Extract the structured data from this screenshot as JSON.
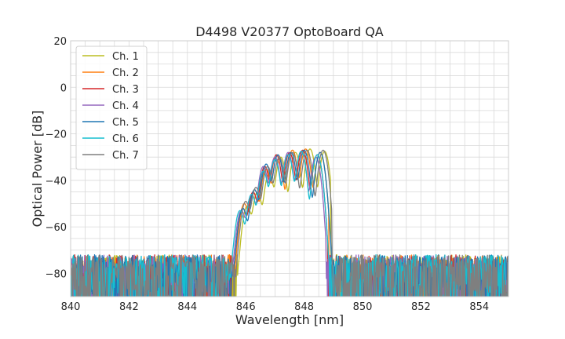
{
  "chart_data": {
    "type": "line",
    "title": "D4498 V20377 OptoBoard QA",
    "xlabel": "Wavelength [nm]",
    "ylabel": "Optical Power [dB]",
    "xlim": [
      840,
      855
    ],
    "ylim": [
      -90,
      20
    ],
    "x_ticks": [
      840,
      842,
      844,
      846,
      848,
      850,
      852,
      854
    ],
    "y_ticks": [
      20,
      0,
      -20,
      -40,
      -60,
      -80
    ],
    "grid": true,
    "legend_position": "top-left",
    "noise_floor_db": -78,
    "series": [
      {
        "name": "Ch. 1",
        "color": "#bcbd22",
        "band": [
          845.7,
          848.9
        ],
        "peaks": [
          [
            846.05,
            -51
          ],
          [
            846.4,
            -45
          ],
          [
            846.8,
            -37
          ],
          [
            847.2,
            -30
          ],
          [
            847.7,
            -28
          ],
          [
            848.2,
            -26.5
          ],
          [
            848.7,
            -27.5
          ]
        ]
      },
      {
        "name": "Ch. 2",
        "color": "#ff7f0e",
        "band": [
          845.55,
          848.85
        ],
        "peaks": [
          [
            845.95,
            -50
          ],
          [
            846.3,
            -44
          ],
          [
            846.7,
            -35
          ],
          [
            847.1,
            -29
          ],
          [
            847.6,
            -27
          ],
          [
            848.05,
            -26.5
          ],
          [
            848.55,
            -28
          ]
        ]
      },
      {
        "name": "Ch. 3",
        "color": "#d62728",
        "band": [
          845.5,
          848.8
        ],
        "peaks": [
          [
            845.9,
            -52
          ],
          [
            846.25,
            -45
          ],
          [
            846.65,
            -34
          ],
          [
            847.05,
            -29
          ],
          [
            847.5,
            -28
          ],
          [
            847.95,
            -27
          ],
          [
            848.45,
            -29
          ]
        ]
      },
      {
        "name": "Ch. 4",
        "color": "#9467bd",
        "band": [
          845.45,
          848.75
        ],
        "peaks": [
          [
            845.85,
            -53
          ],
          [
            846.2,
            -46
          ],
          [
            846.6,
            -34
          ],
          [
            847.0,
            -30
          ],
          [
            847.45,
            -28
          ],
          [
            847.9,
            -27.5
          ],
          [
            848.4,
            -30
          ]
        ]
      },
      {
        "name": "Ch. 5",
        "color": "#1f77b4",
        "band": [
          845.5,
          848.95
        ],
        "peaks": [
          [
            845.9,
            -52
          ],
          [
            846.3,
            -44
          ],
          [
            846.7,
            -33
          ],
          [
            847.1,
            -29
          ],
          [
            847.55,
            -28
          ],
          [
            848.0,
            -27
          ],
          [
            848.55,
            -28
          ]
        ]
      },
      {
        "name": "Ch. 6",
        "color": "#17becf",
        "band": [
          845.4,
          848.85
        ],
        "peaks": [
          [
            845.8,
            -53
          ],
          [
            846.2,
            -46
          ],
          [
            846.6,
            -36
          ],
          [
            847.0,
            -31
          ],
          [
            847.45,
            -29
          ],
          [
            847.9,
            -27.5
          ],
          [
            848.45,
            -29
          ]
        ]
      },
      {
        "name": "Ch. 7",
        "color": "#7f7f7f",
        "band": [
          845.6,
          848.95
        ],
        "peaks": [
          [
            846.0,
            -49
          ],
          [
            846.35,
            -43
          ],
          [
            846.75,
            -34
          ],
          [
            847.15,
            -30
          ],
          [
            847.6,
            -28
          ],
          [
            848.1,
            -27
          ],
          [
            848.65,
            -27
          ]
        ]
      }
    ]
  }
}
